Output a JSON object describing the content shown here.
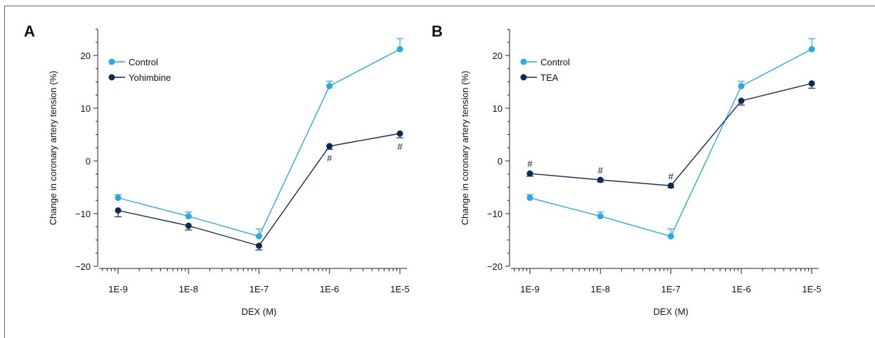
{
  "chart_data": [
    {
      "panel": "A",
      "type": "line",
      "xscale": "log",
      "x_ticks": [
        "1E-9",
        "1E-8",
        "1E-7",
        "1E-6",
        "1E-5"
      ],
      "x": [
        1e-09,
        1e-08,
        1e-07,
        1e-06,
        1e-05
      ],
      "xlabel": "DEX (M)",
      "ylabel": "Change in coronary artery tension (%)",
      "ylim": [
        -20,
        25
      ],
      "y_ticks": [
        20,
        10,
        0,
        -10,
        -20
      ],
      "y_tick_labels": [
        "20",
        "10",
        "0",
        "−10",
        "−20"
      ],
      "legend": "upper-left",
      "series": [
        {
          "name": "Control",
          "color": "#29a9e0",
          "values": [
            -7.0,
            -10.5,
            -14.3,
            14.2,
            21.2
          ],
          "errors": [
            0.6,
            0.8,
            1.4,
            0.9,
            2.0
          ]
        },
        {
          "name": "Yohimbine",
          "color": "#0f2a52",
          "values": [
            -9.4,
            -12.3,
            -16.1,
            2.8,
            5.2
          ],
          "errors": [
            1.2,
            0.8,
            0.8,
            0.6,
            0.8
          ]
        }
      ],
      "annotations": [
        {
          "x": 1e-06,
          "text": "#"
        },
        {
          "x": 1e-05,
          "text": "#"
        }
      ]
    },
    {
      "panel": "B",
      "type": "line",
      "xscale": "log",
      "x_ticks": [
        "1E-9",
        "1E-8",
        "1E-7",
        "1E-6",
        "1E-5"
      ],
      "x": [
        1e-09,
        1e-08,
        1e-07,
        1e-06,
        1e-05
      ],
      "xlabel": "DEX (M)",
      "ylabel": "Change in coronary artery tension (%)",
      "ylim": [
        -20,
        25
      ],
      "y_ticks": [
        20,
        10,
        0,
        -10,
        -20
      ],
      "y_tick_labels": [
        "20",
        "10",
        "0",
        "−10",
        "−20"
      ],
      "legend": "upper-left",
      "series": [
        {
          "name": "Control",
          "color": "#29a9e0",
          "values": [
            -7.0,
            -10.5,
            -14.3,
            14.2,
            21.2
          ],
          "errors": [
            0.6,
            0.8,
            1.4,
            0.9,
            2.0
          ]
        },
        {
          "name": "TEA",
          "color": "#0f2a52",
          "values": [
            -2.4,
            -3.6,
            -4.7,
            11.4,
            14.7
          ],
          "errors": [
            0.5,
            0.4,
            0.4,
            0.8,
            0.9
          ]
        }
      ],
      "annotations": [
        {
          "x": 1e-09,
          "text": "#"
        },
        {
          "x": 1e-08,
          "text": "#"
        },
        {
          "x": 1e-07,
          "text": "#"
        }
      ]
    }
  ]
}
